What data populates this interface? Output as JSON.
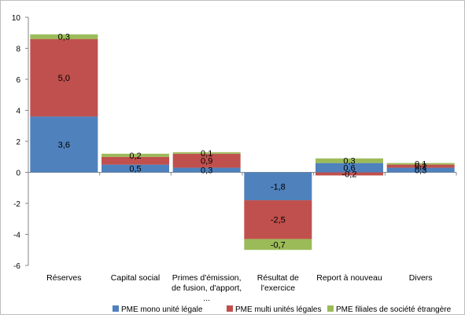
{
  "chart_data": {
    "type": "bar",
    "stacked": true,
    "categories": [
      "Réserves",
      "Capital social",
      "Primes d'émission, de fusion, d'apport, ...",
      "Résultat de l'exercice",
      "Report à nouveau",
      "Divers"
    ],
    "category_lines": [
      [
        "Réserves"
      ],
      [
        "Capital social"
      ],
      [
        "Primes d'émission,",
        "de fusion, d'apport,",
        "..."
      ],
      [
        "Résultat de",
        "l'exercice"
      ],
      [
        "Report à nouveau"
      ],
      [
        "Divers"
      ]
    ],
    "series": [
      {
        "name": "PME mono unité légale",
        "color": "#4f81bd",
        "values": [
          3.6,
          0.5,
          0.3,
          -1.8,
          0.6,
          0.3
        ],
        "labels": [
          "3,6",
          "0,5",
          "0,3",
          "-1,8",
          "0,6",
          "0,3"
        ]
      },
      {
        "name": "PME multi unités légales",
        "color": "#c0504d",
        "values": [
          5.0,
          0.5,
          0.9,
          -2.5,
          -0.2,
          0.2
        ],
        "labels": [
          "5,0",
          "",
          "0,9",
          "-2,5",
          "-0,2",
          "0,2"
        ]
      },
      {
        "name": "PME filiales de société étrangère",
        "color": "#9bbb59",
        "values": [
          0.3,
          0.2,
          0.1,
          -0.7,
          0.3,
          0.1
        ],
        "labels": [
          "0,3",
          "0,2",
          "0,1",
          "-0,7",
          "0,3",
          "0,1"
        ]
      }
    ],
    "y_ticks": [
      "-6",
      "-4",
      "-2",
      "0",
      "2",
      "4",
      "6",
      "8",
      "10"
    ],
    "ylim": [
      -6,
      10
    ],
    "grid": false,
    "legend": "bottom"
  }
}
